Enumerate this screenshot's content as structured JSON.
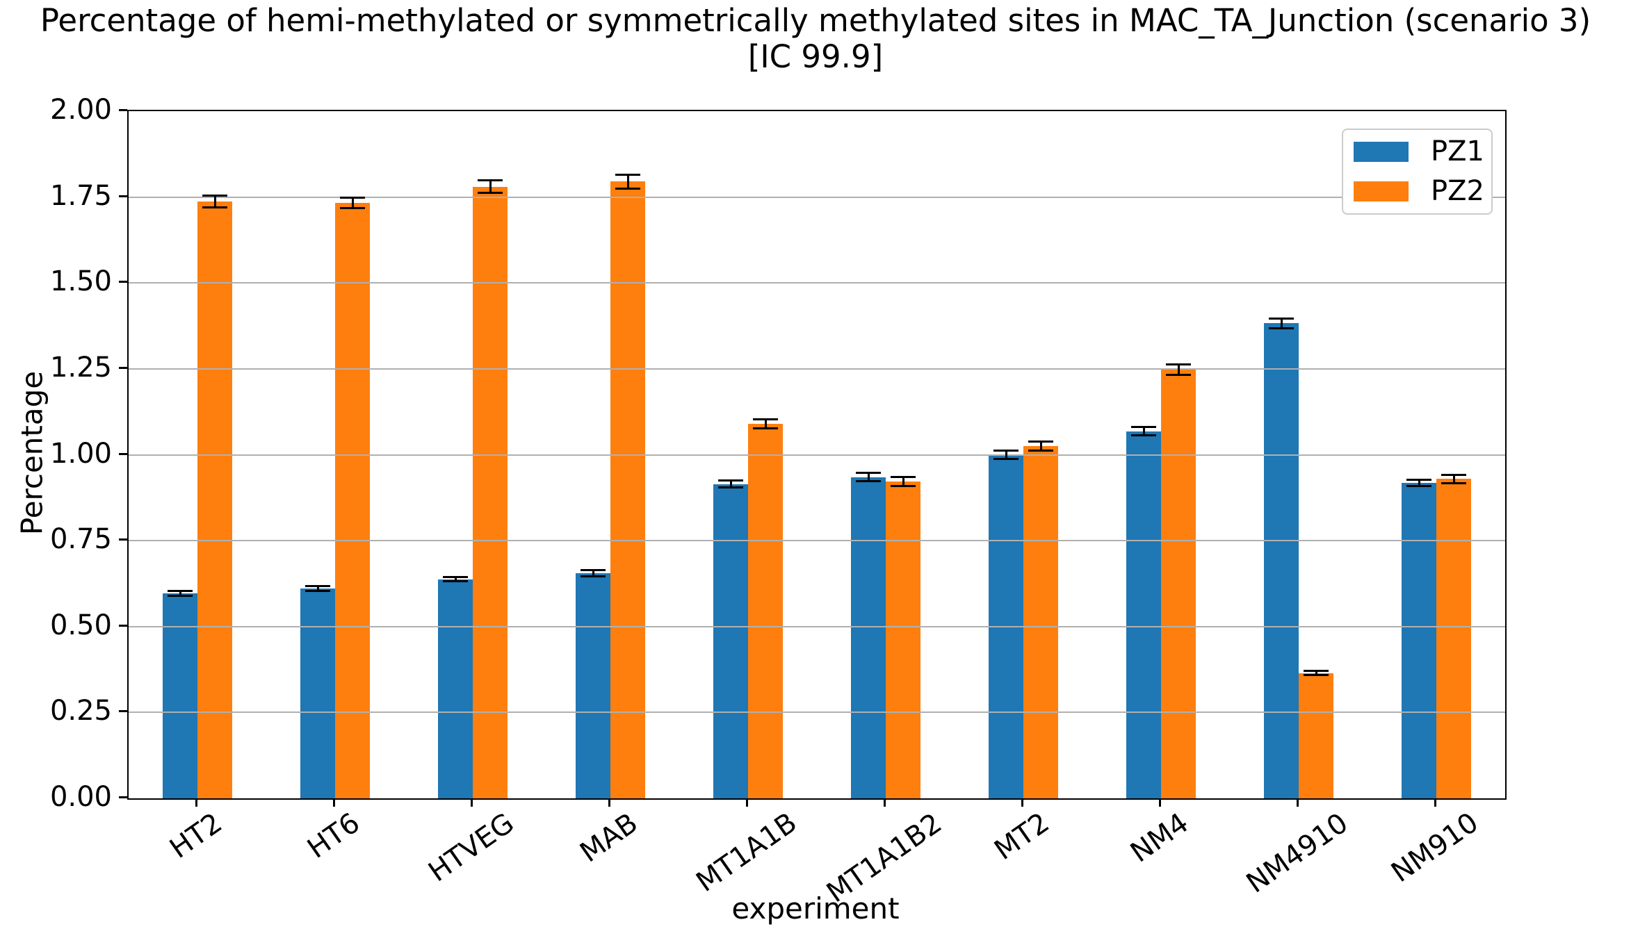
{
  "title": {
    "line1": "Percentage of hemi-methylated or symmetrically methylated sites in MAC_TA_Junction (scenario 3)",
    "line2": "[IC 99.9]"
  },
  "axes": {
    "xlabel": "experiment",
    "ylabel": "Percentage"
  },
  "chart_data": {
    "type": "bar",
    "title": "Percentage of hemi-methylated or symmetrically methylated sites in MAC_TA_Junction (scenario 3) [IC 99.9]",
    "xlabel": "experiment",
    "ylabel": "Percentage",
    "ylim": [
      0,
      2.0
    ],
    "ytick_step": 0.25,
    "grid": true,
    "grid_color": "#b0b0b0",
    "legend_position": "upper right",
    "error_bars": true,
    "error_bar_color": "#000000",
    "categories": [
      "HT2",
      "HT6",
      "HTVEG",
      "MAB",
      "MT1A1B",
      "MT1A1B2",
      "MT2",
      "NM4",
      "NM4910",
      "NM910"
    ],
    "series": [
      {
        "name": "PZ1",
        "color": "#1f77b4",
        "values": [
          0.597,
          0.61,
          0.638,
          0.655,
          0.915,
          0.935,
          1.0,
          1.068,
          1.383,
          0.918
        ],
        "errors": [
          0.007,
          0.007,
          0.007,
          0.009,
          0.011,
          0.012,
          0.012,
          0.012,
          0.014,
          0.01
        ]
      },
      {
        "name": "PZ2",
        "color": "#ff7f0e",
        "values": [
          1.737,
          1.733,
          1.78,
          1.795,
          1.09,
          0.922,
          1.025,
          1.247,
          0.365,
          0.93
        ],
        "errors": [
          0.018,
          0.015,
          0.018,
          0.02,
          0.013,
          0.013,
          0.013,
          0.015,
          0.006,
          0.012
        ]
      }
    ]
  }
}
